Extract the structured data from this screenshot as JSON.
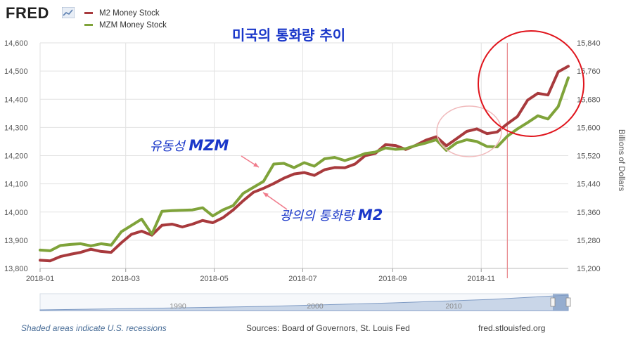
{
  "brand": {
    "name": "FRED"
  },
  "title": "미국의 통화량 추이",
  "legend": [
    {
      "label": "M2 Money Stock",
      "color": "#a83a3d"
    },
    {
      "label": "MZM Money Stock",
      "color": "#7fa33a"
    }
  ],
  "annotations": {
    "mzm_label_text": "유동성 ",
    "mzm_label_bold": "MZM",
    "m2_label_text": "광의의 통화량 ",
    "m2_label_bold": "M2"
  },
  "right_axis_label": "Billions of Dollars",
  "footer": {
    "recessions": "Shaded areas indicate U.S. recessions",
    "sources": "Sources: Board of Governors, St. Louis Fed",
    "site": "fred.stlouisfed.org"
  },
  "navigator": {
    "ticks": [
      "1990",
      "2000",
      "2010"
    ]
  },
  "chart_data": {
    "type": "line",
    "x": [
      "2018-01-01",
      "2018-01-08",
      "2018-01-15",
      "2018-01-22",
      "2018-01-29",
      "2018-02-05",
      "2018-02-12",
      "2018-02-19",
      "2018-02-26",
      "2018-03-05",
      "2018-03-12",
      "2018-03-19",
      "2018-03-26",
      "2018-04-02",
      "2018-04-09",
      "2018-04-16",
      "2018-04-23",
      "2018-04-30",
      "2018-05-07",
      "2018-05-14",
      "2018-05-21",
      "2018-05-28",
      "2018-06-04",
      "2018-06-11",
      "2018-06-18",
      "2018-06-25",
      "2018-07-02",
      "2018-07-09",
      "2018-07-16",
      "2018-07-23",
      "2018-07-30",
      "2018-08-06",
      "2018-08-13",
      "2018-08-20",
      "2018-08-27",
      "2018-09-03",
      "2018-09-10",
      "2018-09-17",
      "2018-09-24",
      "2018-10-01",
      "2018-10-08",
      "2018-10-15",
      "2018-10-22",
      "2018-10-29",
      "2018-11-05",
      "2018-11-12",
      "2018-11-19",
      "2018-11-26",
      "2018-12-03",
      "2018-12-10",
      "2018-12-17",
      "2018-12-24",
      "2018-12-31"
    ],
    "x_ticks": [
      "2018-01",
      "2018-03",
      "2018-05",
      "2018-07",
      "2018-09",
      "2018-11"
    ],
    "series": [
      {
        "name": "M2 Money Stock",
        "axis": "left",
        "color": "#a83a3d",
        "values": [
          13829,
          13827,
          13842,
          13850,
          13857,
          13868,
          13860,
          13857,
          13891,
          13921,
          13932,
          13918,
          13953,
          13957,
          13947,
          13957,
          13970,
          13962,
          13980,
          14007,
          14040,
          14070,
          14084,
          14101,
          14120,
          14135,
          14140,
          14130,
          14150,
          14158,
          14157,
          14170,
          14200,
          14208,
          14239,
          14236,
          14222,
          14237,
          14255,
          14267,
          14235,
          14260,
          14286,
          14295,
          14278,
          14284,
          14313,
          14339,
          14397,
          14421,
          14415,
          14497,
          14517
        ]
      },
      {
        "name": "MZM Money Stock",
        "axis": "right",
        "color": "#7fa33a",
        "values": [
          15252,
          15250,
          15265,
          15268,
          15270,
          15264,
          15270,
          15266,
          15304,
          15322,
          15340,
          15297,
          15362,
          15364,
          15365,
          15366,
          15372,
          15349,
          15366,
          15378,
          15413,
          15430,
          15447,
          15496,
          15498,
          15486,
          15500,
          15490,
          15511,
          15515,
          15506,
          15515,
          15526,
          15530,
          15542,
          15538,
          15540,
          15549,
          15556,
          15565,
          15535,
          15556,
          15565,
          15560,
          15546,
          15545,
          15575,
          15596,
          15614,
          15633,
          15624,
          15659,
          15741
        ]
      }
    ],
    "y_left": {
      "range": [
        13800,
        14600
      ],
      "ticks": [
        "13,800",
        "13,900",
        "14,000",
        "14,100",
        "14,200",
        "14,300",
        "14,400",
        "14,500",
        "14,600"
      ]
    },
    "y_right": {
      "label": "Billions of Dollars",
      "range": [
        15200,
        15840
      ],
      "ticks": [
        "15,200",
        "15,280",
        "15,360",
        "15,440",
        "15,520",
        "15,600",
        "15,680",
        "15,760",
        "15,840"
      ]
    },
    "grid": true,
    "highlight": {
      "vertical_marker_x": "2018-11-19",
      "circles": [
        "2018-10 dip",
        "2018-12 rise"
      ]
    }
  }
}
